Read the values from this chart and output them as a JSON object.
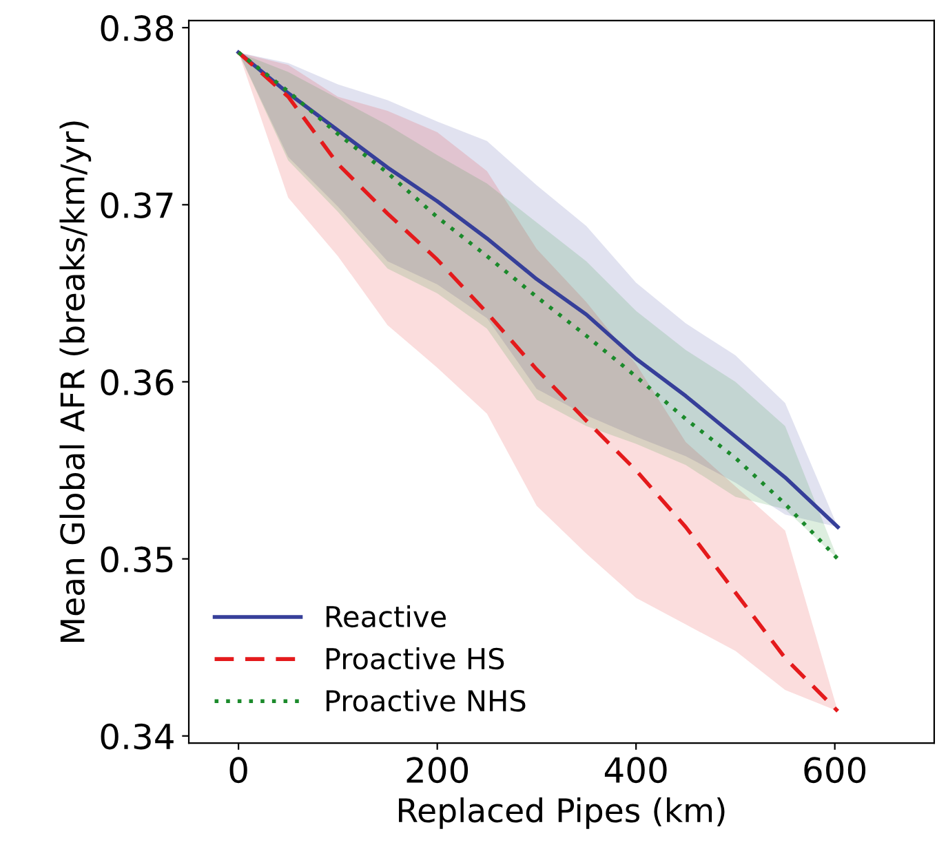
{
  "chart_data": {
    "type": "line",
    "xlabel": "Replaced Pipes (km)",
    "ylabel": "Mean Global AFR (breaks/km/yr)",
    "x": [
      0,
      50,
      100,
      150,
      200,
      250,
      300,
      350,
      400,
      450,
      500,
      550,
      603
    ],
    "xlim": [
      -50,
      700
    ],
    "xticks": [
      0,
      200,
      400,
      600
    ],
    "ylim": [
      0.3396,
      0.3804
    ],
    "yticks": [
      0.34,
      0.35,
      0.36,
      0.37,
      0.38
    ],
    "grid": false,
    "legend": "bottom left",
    "series": [
      {
        "name": "Reactive",
        "color": "#363f99",
        "line_style": "solid",
        "values": [
          0.3786,
          0.3763,
          0.3742,
          0.3721,
          0.3702,
          0.3681,
          0.3658,
          0.3638,
          0.3613,
          0.3592,
          0.3569,
          0.3546,
          0.3518
        ],
        "lower": [
          0.3786,
          0.3727,
          0.3699,
          0.3668,
          0.3655,
          0.3636,
          0.3596,
          0.3581,
          0.3569,
          0.3558,
          0.3543,
          0.3525,
          0.3518
        ],
        "upper": [
          0.3786,
          0.378,
          0.3768,
          0.3759,
          0.3747,
          0.3736,
          0.3711,
          0.3688,
          0.3656,
          0.3633,
          0.3615,
          0.3588,
          0.3518
        ]
      },
      {
        "name": "Proactive HS",
        "color": "#e41a1c",
        "line_style": "dashed",
        "values": [
          0.3786,
          0.3761,
          0.3723,
          0.3695,
          0.3669,
          0.3639,
          0.3607,
          0.3578,
          0.355,
          0.3518,
          0.3481,
          0.3444,
          0.3414
        ],
        "lower": [
          0.3786,
          0.3704,
          0.3671,
          0.3632,
          0.3608,
          0.3582,
          0.353,
          0.3503,
          0.3478,
          0.3463,
          0.3448,
          0.3426,
          0.3414
        ],
        "upper": [
          0.3786,
          0.3779,
          0.3761,
          0.3753,
          0.3741,
          0.3719,
          0.3675,
          0.3645,
          0.361,
          0.3566,
          0.3541,
          0.3516,
          0.3414
        ]
      },
      {
        "name": "Proactive NHS",
        "color": "#1b8a2b",
        "line_style": "dotted",
        "values": [
          0.3786,
          0.3764,
          0.374,
          0.3718,
          0.3693,
          0.3671,
          0.3648,
          0.3626,
          0.3603,
          0.3579,
          0.3557,
          0.3531,
          0.35
        ],
        "lower": [
          0.3786,
          0.3725,
          0.3696,
          0.3664,
          0.365,
          0.363,
          0.359,
          0.3575,
          0.3565,
          0.3553,
          0.3535,
          0.3528,
          0.35
        ],
        "upper": [
          0.3786,
          0.3775,
          0.376,
          0.3745,
          0.3728,
          0.3712,
          0.369,
          0.3668,
          0.364,
          0.3618,
          0.36,
          0.3575,
          0.35
        ]
      }
    ]
  }
}
